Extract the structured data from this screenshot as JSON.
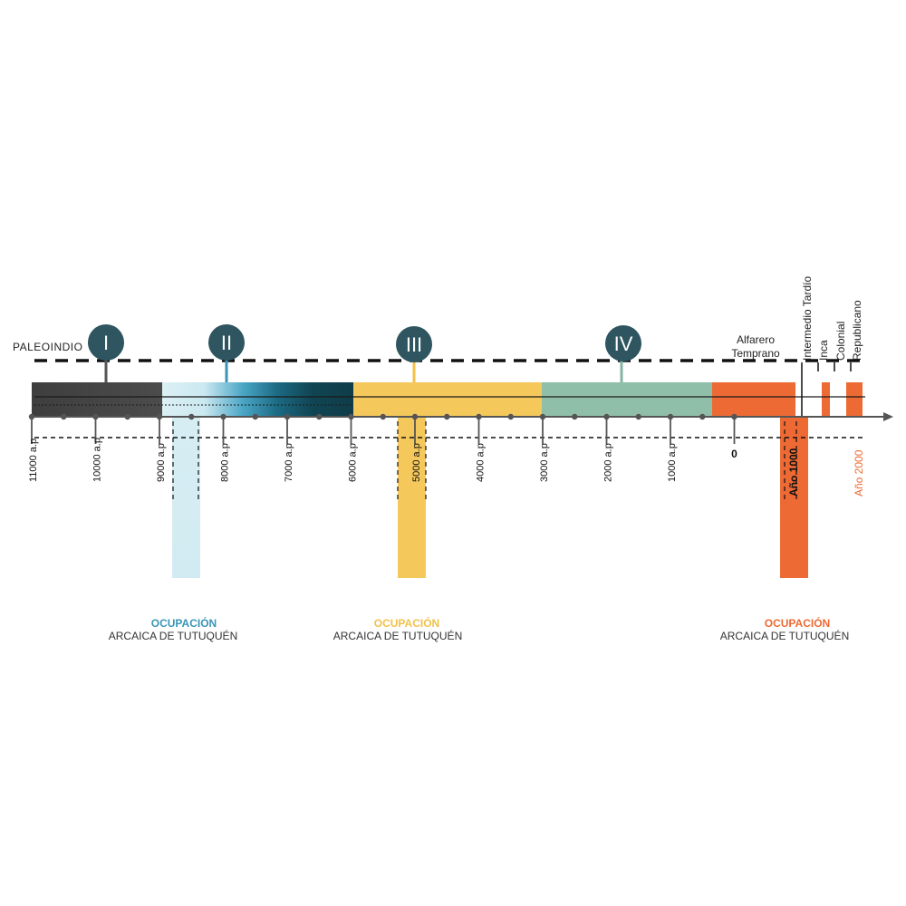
{
  "top_label": "PALEOINDIO",
  "phases": [
    {
      "numeral": "I",
      "circle_color": "#2e5560",
      "stem_color": "#555555"
    },
    {
      "numeral": "II",
      "circle_color": "#2e5560",
      "stem_color": "#3a95b5"
    },
    {
      "numeral": "III",
      "circle_color": "#2e5560",
      "stem_color": "#f2c14a"
    },
    {
      "numeral": "IV",
      "circle_color": "#2e5560",
      "stem_color": "#85b5a2"
    }
  ],
  "period_labels": {
    "alfarero_line1": "Alfarero",
    "alfarero_line2": "Temprano",
    "intermedio": "Intermedio Tardío",
    "inca": "Inca",
    "colonial": "Colonial",
    "republicano": "Republicano"
  },
  "tick_labels": [
    "11000 a.p",
    "10000 a.p",
    "9000 a.p",
    "8000 a.p",
    "7000 a.p",
    "6000 a.p",
    "5000 a.p",
    "4000 a.p",
    "3000 a.p",
    "2000 a.p",
    "1000 a.p",
    "0"
  ],
  "highlight_labels": {
    "ano_1000": "Año 1000",
    "ano_2000": "Año 2000"
  },
  "captions": [
    {
      "line1": "OCUPACIÓN",
      "line2": "ARCAICA  DE TUTUQUÉN",
      "color": "#3a95b5"
    },
    {
      "line1": "OCUPACIÓN",
      "line2": "ARCAICA DE TUTUQUÉN",
      "color": "#f2c14a"
    },
    {
      "line1": "OCUPACIÓN",
      "line2": "ARCAICA DE TUTUQUÉN",
      "color": "#ee6a34"
    }
  ],
  "colors": {
    "dark": "#4a4a4a",
    "light_blue": "#d6edf3",
    "teal_dark": "#15424f",
    "yellow": "#f5c85c",
    "sage": "#8fbfa9",
    "orange": "#ee6a34"
  }
}
